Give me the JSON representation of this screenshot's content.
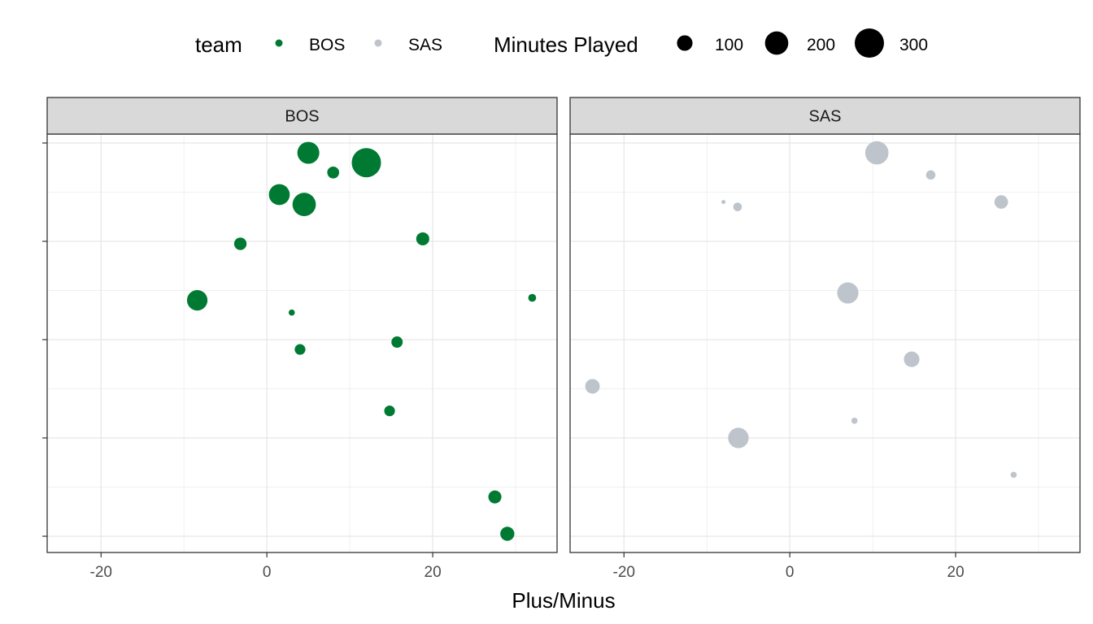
{
  "chart_data": {
    "type": "scatter",
    "xlabel": "Plus/Minus",
    "ylabel": "",
    "xlim": [
      -26.5,
      35
    ],
    "ylim": [
      0.5,
      8.8
    ],
    "x_ticks": [
      -20,
      0,
      20
    ],
    "x_ticklabels": [
      "-20",
      "0",
      "20"
    ],
    "y_ticks": [
      1,
      3,
      5,
      7,
      9
    ],
    "y_ticklabels_visible": false,
    "grid": true,
    "facets": [
      "BOS",
      "SAS"
    ],
    "legend": {
      "position": "top",
      "color_title": "team",
      "color_entries": [
        {
          "label": "BOS",
          "color": "#007A33"
        },
        {
          "label": "SAS",
          "color": "#BEC4CB"
        }
      ],
      "size_title": "Minutes Played",
      "size_entries": [
        {
          "label": "100",
          "value": 100
        },
        {
          "label": "200",
          "value": 200
        },
        {
          "label": "300",
          "value": 300
        }
      ]
    },
    "size_scale": {
      "min_minutes": 15,
      "max_minutes": 300
    },
    "series": [
      {
        "facet": "BOS",
        "team": "BOS",
        "color": "#007A33",
        "points": [
          {
            "x": 5,
            "y": 8.8,
            "minutes": 180
          },
          {
            "x": 8,
            "y": 8.4,
            "minutes": 65
          },
          {
            "x": 12,
            "y": 8.6,
            "minutes": 300
          },
          {
            "x": 1.5,
            "y": 7.95,
            "minutes": 165
          },
          {
            "x": 4.5,
            "y": 7.75,
            "minutes": 200
          },
          {
            "x": -3.2,
            "y": 6.95,
            "minutes": 70
          },
          {
            "x": 18.8,
            "y": 7.05,
            "minutes": 75
          },
          {
            "x": -8.4,
            "y": 5.8,
            "minutes": 160
          },
          {
            "x": 3,
            "y": 5.55,
            "minutes": 25
          },
          {
            "x": 32,
            "y": 5.85,
            "minutes": 35
          },
          {
            "x": 15.7,
            "y": 4.95,
            "minutes": 60
          },
          {
            "x": 4,
            "y": 4.8,
            "minutes": 55
          },
          {
            "x": 14.8,
            "y": 3.55,
            "minutes": 55
          },
          {
            "x": 27.5,
            "y": 1.8,
            "minutes": 75
          },
          {
            "x": 29,
            "y": 1.05,
            "minutes": 85
          }
        ]
      },
      {
        "facet": "SAS",
        "team": "SAS",
        "color": "#BEC4CB",
        "points": [
          {
            "x": 10.5,
            "y": 8.8,
            "minutes": 200
          },
          {
            "x": 17,
            "y": 8.35,
            "minutes": 45
          },
          {
            "x": -8,
            "y": 7.8,
            "minutes": 15
          },
          {
            "x": -6.3,
            "y": 7.7,
            "minutes": 40
          },
          {
            "x": 25.5,
            "y": 7.8,
            "minutes": 80
          },
          {
            "x": 7,
            "y": 5.95,
            "minutes": 170
          },
          {
            "x": 14.7,
            "y": 4.6,
            "minutes": 100
          },
          {
            "x": -23.8,
            "y": 4.05,
            "minutes": 90
          },
          {
            "x": 7.8,
            "y": 3.35,
            "minutes": 25
          },
          {
            "x": -6.2,
            "y": 3,
            "minutes": 160
          },
          {
            "x": 27,
            "y": 2.25,
            "minutes": 25
          }
        ]
      }
    ]
  }
}
